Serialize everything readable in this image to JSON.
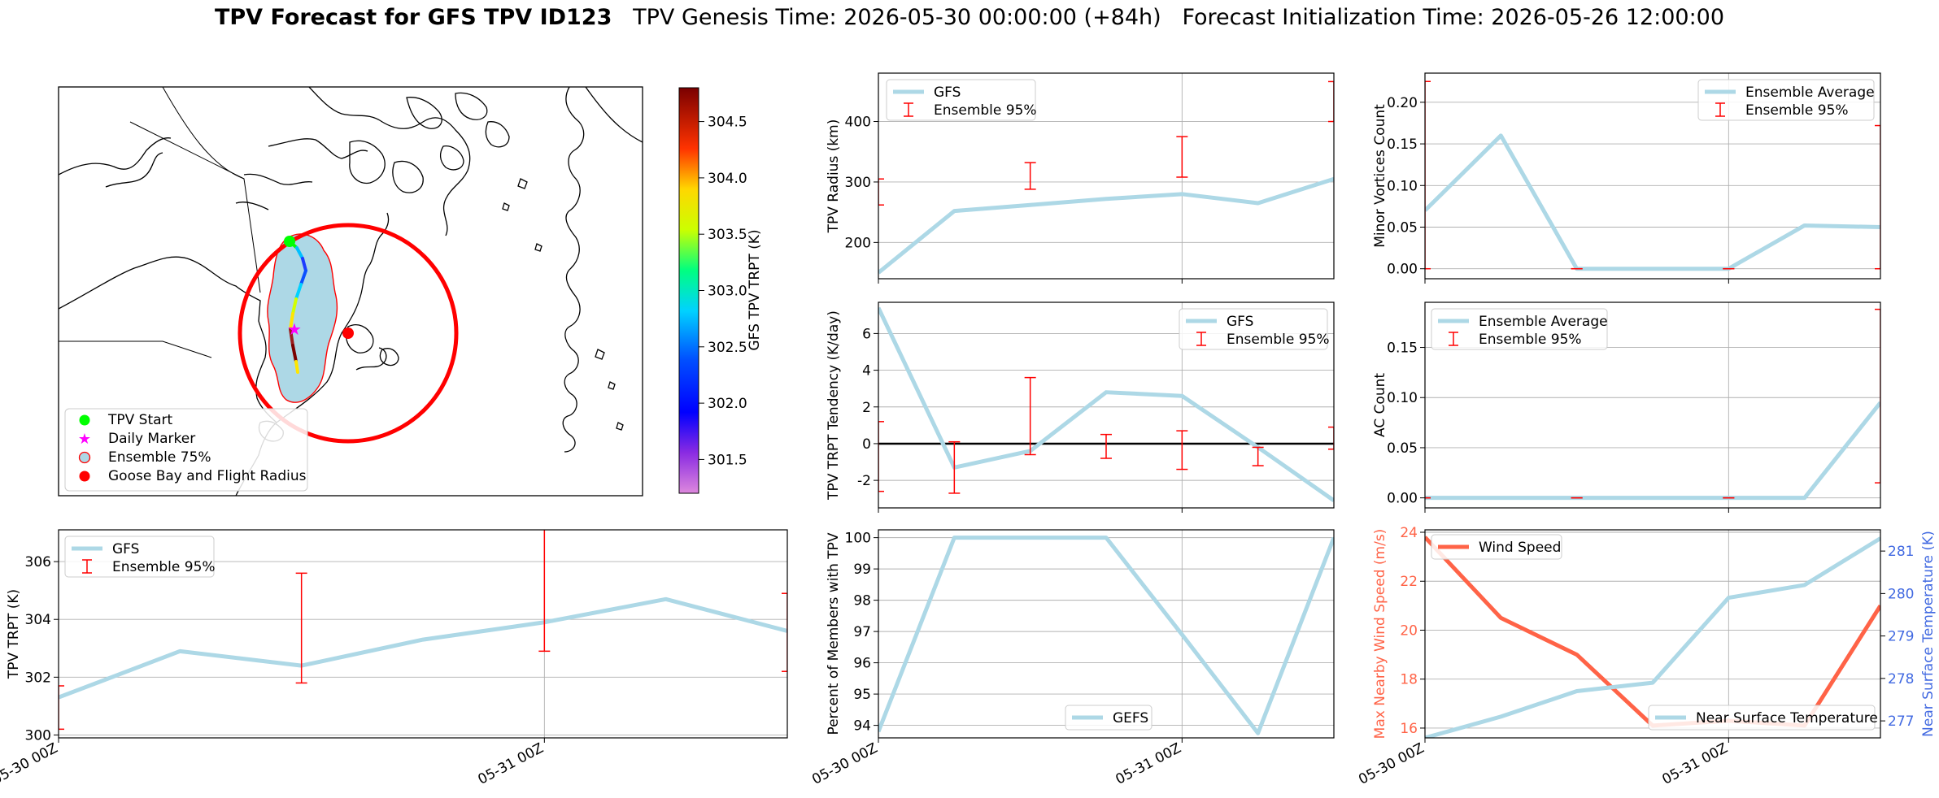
{
  "title": {
    "bold": "TPV Forecast for GFS TPV ID123",
    "genesis": "TPV Genesis Time: 2026-05-30 00:00:00 (+84h)",
    "init": "Forecast Initialization Time: 2026-05-26 12:00:00"
  },
  "colors": {
    "gfs_line": "#add8e6",
    "ensemble_bar": "#ff0000",
    "wind_line": "#ff6347",
    "temp_axis": "#4169e1",
    "grid": "#b0b0b0"
  },
  "map": {
    "colorbar": {
      "label": "GFS TPV TRPT (K)",
      "ticks": [
        "304.5",
        "304.0",
        "303.5",
        "303.0",
        "302.5",
        "302.0",
        "301.5"
      ],
      "range": [
        301.2,
        304.8
      ]
    },
    "legend": [
      "TPV Start",
      "Daily Marker",
      "Ensemble 75%",
      "Goose Bay and Flight Radius"
    ]
  },
  "time_ticks": [
    "05-30 00Z",
    "05-31 00Z"
  ],
  "chart_data": [
    {
      "id": "radius",
      "type": "line",
      "ylabel": "TPV Radius (km)",
      "ylim": [
        140,
        480
      ],
      "yticks": [
        200,
        300,
        400
      ],
      "x": [
        0,
        1,
        2,
        3,
        4,
        5,
        6
      ],
      "series": [
        {
          "name": "GFS",
          "values": [
            150,
            252,
            262,
            272,
            280,
            265,
            305
          ]
        }
      ],
      "errorbars": {
        "name": "Ensemble 95%",
        "x": [
          0,
          2,
          4,
          6
        ],
        "low": [
          262,
          288,
          308,
          400
        ],
        "high": [
          305,
          332,
          375,
          466
        ]
      },
      "legend_position": "upper left"
    },
    {
      "id": "minor",
      "type": "line",
      "ylabel": "Minor Vortices Count",
      "ylim": [
        -0.012,
        0.235
      ],
      "yticks": [
        0.0,
        0.05,
        0.1,
        0.15,
        0.2
      ],
      "x": [
        0,
        1,
        2,
        3,
        4,
        5,
        6
      ],
      "series": [
        {
          "name": "Ensemble Average",
          "values": [
            0.07,
            0.16,
            0.0,
            0.0,
            0.0,
            0.052,
            0.05
          ]
        }
      ],
      "errorbars": {
        "name": "Ensemble 95%",
        "x": [
          0,
          2,
          4,
          6
        ],
        "low": [
          0.0,
          0.0,
          0.0,
          0.0
        ],
        "high": [
          0.225,
          0.0,
          0.0,
          0.172
        ]
      },
      "legend_position": "upper right"
    },
    {
      "id": "tendency",
      "type": "line",
      "ylabel": "TPV TRPT Tendency (K/day)",
      "ylim": [
        -3.5,
        7.7
      ],
      "yticks": [
        -2,
        0,
        2,
        4,
        6
      ],
      "x": [
        0,
        1,
        2,
        3,
        4,
        5,
        6
      ],
      "series": [
        {
          "name": "GFS",
          "values": [
            7.4,
            -1.3,
            -0.4,
            2.8,
            2.6,
            -0.2,
            -3.1
          ]
        }
      ],
      "errorbars": {
        "name": "Ensemble 95%",
        "x": [
          0,
          1,
          2,
          3,
          4,
          5,
          6
        ],
        "low": [
          -2.6,
          -2.7,
          -0.6,
          -0.8,
          -1.4,
          -1.2,
          -0.3
        ],
        "high": [
          1.2,
          0.1,
          3.6,
          0.5,
          0.7,
          -0.2,
          0.9
        ]
      },
      "zero_line": true,
      "legend_position": "upper right"
    },
    {
      "id": "ac",
      "type": "line",
      "ylabel": "AC Count",
      "ylim": [
        -0.01,
        0.195
      ],
      "yticks": [
        0.0,
        0.05,
        0.1,
        0.15
      ],
      "x": [
        0,
        1,
        2,
        3,
        4,
        5,
        6
      ],
      "series": [
        {
          "name": "Ensemble Average",
          "values": [
            0.0,
            0.0,
            0.0,
            0.0,
            0.0,
            0.0,
            0.095
          ]
        }
      ],
      "errorbars": {
        "name": "Ensemble 95%",
        "x": [
          0,
          2,
          4,
          6
        ],
        "low": [
          0.0,
          0.0,
          0.0,
          0.015
        ],
        "high": [
          0.0,
          0.0,
          0.0,
          0.188
        ]
      },
      "legend_position": "upper left"
    },
    {
      "id": "trpt",
      "type": "line",
      "ylabel": "TPV TRPT (K)",
      "ylim": [
        299.9,
        307.1
      ],
      "yticks": [
        300,
        302,
        304,
        306
      ],
      "x": [
        0,
        1,
        2,
        3,
        4,
        5,
        6
      ],
      "series": [
        {
          "name": "GFS",
          "values": [
            301.3,
            302.9,
            302.4,
            303.3,
            303.9,
            304.7,
            303.6
          ]
        }
      ],
      "errorbars": {
        "name": "Ensemble 95%",
        "x": [
          0,
          2,
          4,
          6
        ],
        "low": [
          300.2,
          301.8,
          302.9,
          302.2
        ],
        "high": [
          301.7,
          305.6,
          307.2,
          304.9
        ]
      },
      "legend_position": "upper left"
    },
    {
      "id": "members",
      "type": "line",
      "ylabel": "Percent of Members with TPV",
      "ylim": [
        93.6,
        100.25
      ],
      "yticks": [
        94,
        95,
        96,
        97,
        98,
        99,
        100
      ],
      "x": [
        0,
        1,
        2,
        3,
        4,
        5,
        6
      ],
      "series": [
        {
          "name": "GEFS",
          "values": [
            93.8,
            100,
            100,
            100,
            96.9,
            93.75,
            100
          ]
        }
      ],
      "legend_position": "lower center"
    },
    {
      "id": "wind",
      "type": "line",
      "ylabel": "Max Nearby Wind Speed (m/s)",
      "ylim": [
        15.6,
        24.1
      ],
      "yticks": [
        16,
        18,
        20,
        22,
        24
      ],
      "y2label": "Near Surface Temperature (K)",
      "y2lim": [
        276.6,
        281.5
      ],
      "y2ticks": [
        277,
        278,
        279,
        280,
        281
      ],
      "x": [
        0,
        1,
        2,
        3,
        4,
        5,
        6
      ],
      "series": [
        {
          "name": "Wind Speed",
          "values": [
            23.8,
            20.5,
            19.0,
            16.1,
            16.3,
            16.1,
            21.0
          ]
        },
        {
          "name": "Near Surface Temperature",
          "values": [
            276.6,
            277.1,
            277.7,
            277.9,
            279.9,
            280.2,
            281.3
          ]
        }
      ]
    }
  ]
}
